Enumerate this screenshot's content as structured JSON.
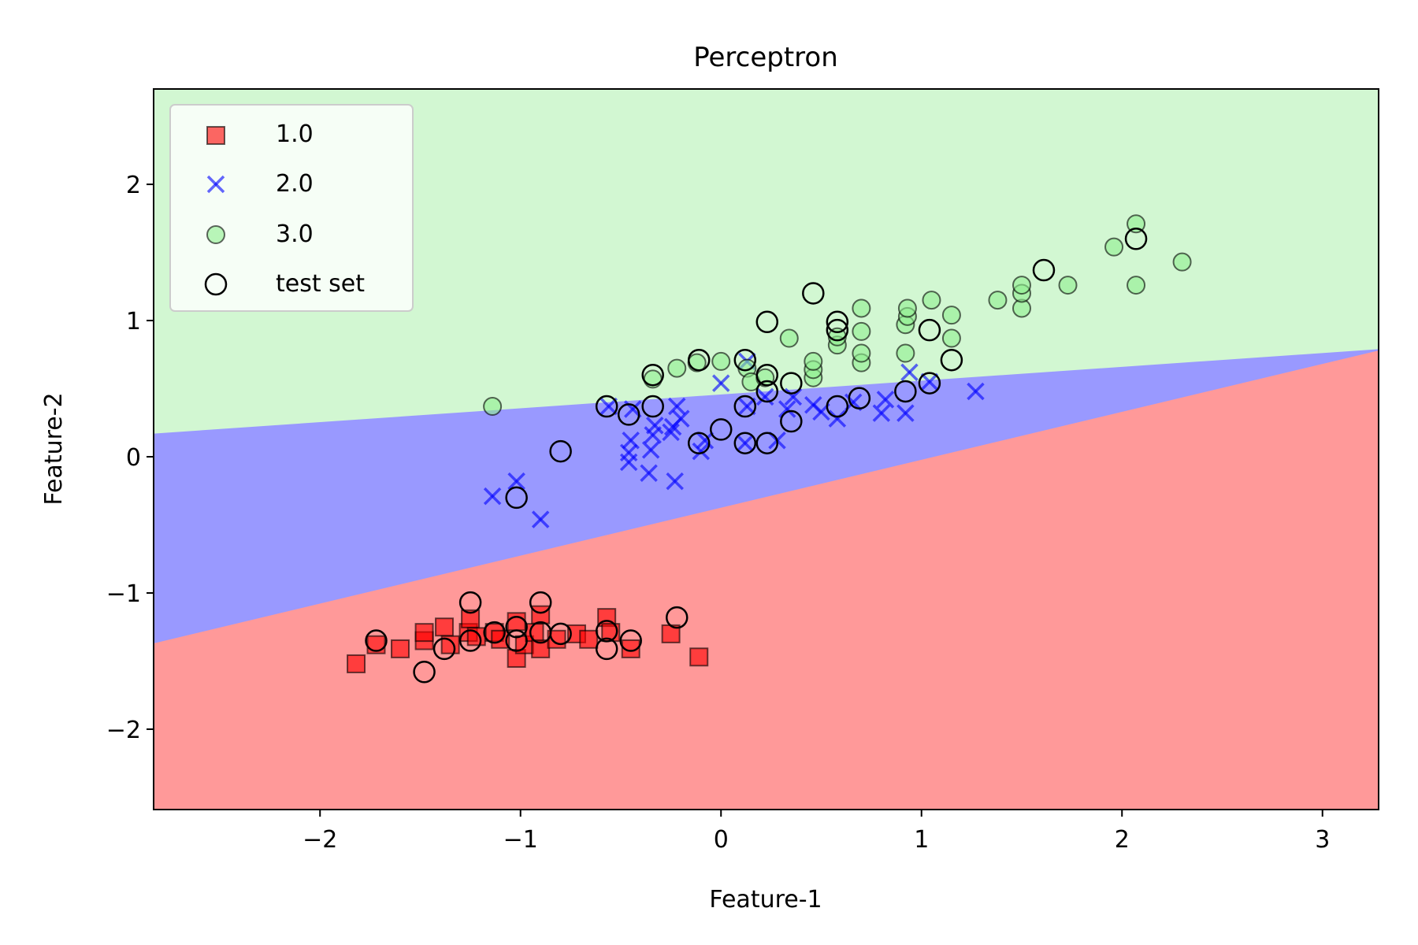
{
  "chart_data": {
    "type": "scatter",
    "title": "Perceptron",
    "xlabel": "Feature-1",
    "ylabel": "Feature-2",
    "xlim": [
      -2.83,
      3.28
    ],
    "ylim": [
      -2.59,
      2.7
    ],
    "xticks": [
      -2,
      -1,
      0,
      1,
      2,
      3
    ],
    "xtick_labels": [
      "−2",
      "−1",
      "0",
      "1",
      "2",
      "3"
    ],
    "yticks": [
      -2,
      -1,
      0,
      1,
      2
    ],
    "ytick_labels": [
      "−2",
      "−1",
      "0",
      "1",
      "2"
    ],
    "grid": false,
    "legend_position": "top-left",
    "decision_regions": {
      "colors": {
        "1.0": "#ff9999",
        "2.0": "#9999ff",
        "3.0": "#d2f7d2"
      },
      "boundary_red_blue": [
        [
          -2.83,
          -1.37
        ],
        [
          3.28,
          0.78
        ]
      ],
      "boundary_blue_green": [
        [
          -2.83,
          0.17
        ],
        [
          3.28,
          0.79
        ]
      ]
    },
    "series": [
      {
        "name": "1.0",
        "marker": "square",
        "color": "#ff0000",
        "points": [
          [
            -1.82,
            -1.52
          ],
          [
            -1.72,
            -1.38
          ],
          [
            -1.6,
            -1.41
          ],
          [
            -1.48,
            -1.35
          ],
          [
            -1.48,
            -1.29
          ],
          [
            -1.38,
            -1.25
          ],
          [
            -1.35,
            -1.38
          ],
          [
            -1.26,
            -1.29
          ],
          [
            -1.25,
            -1.19
          ],
          [
            -1.22,
            -1.32
          ],
          [
            -1.13,
            -1.29
          ],
          [
            -1.1,
            -1.34
          ],
          [
            -1.02,
            -1.21
          ],
          [
            -1.02,
            -1.48
          ],
          [
            -0.98,
            -1.38
          ],
          [
            -0.93,
            -1.29
          ],
          [
            -0.9,
            -1.16
          ],
          [
            -0.9,
            -1.41
          ],
          [
            -0.82,
            -1.34
          ],
          [
            -0.72,
            -1.3
          ],
          [
            -0.66,
            -1.34
          ],
          [
            -0.57,
            -1.18
          ],
          [
            -0.55,
            -1.29
          ],
          [
            -0.45,
            -1.41
          ],
          [
            -0.25,
            -1.3
          ],
          [
            -0.11,
            -1.47
          ]
        ]
      },
      {
        "name": "2.0",
        "marker": "x",
        "color": "#0000ff",
        "points": [
          [
            -1.14,
            -0.29
          ],
          [
            -1.02,
            -0.18
          ],
          [
            -0.9,
            -0.46
          ],
          [
            -0.56,
            0.37
          ],
          [
            -0.46,
            -0.04
          ],
          [
            -0.46,
            0.03
          ],
          [
            -0.45,
            0.12
          ],
          [
            -0.44,
            0.35
          ],
          [
            -0.36,
            -0.12
          ],
          [
            -0.35,
            0.05
          ],
          [
            -0.34,
            0.16
          ],
          [
            -0.33,
            0.23
          ],
          [
            -0.25,
            0.18
          ],
          [
            -0.24,
            0.22
          ],
          [
            -0.23,
            -0.18
          ],
          [
            -0.22,
            0.37
          ],
          [
            -0.2,
            0.28
          ],
          [
            -0.1,
            0.04
          ],
          [
            -0.08,
            0.12
          ],
          [
            0.0,
            0.54
          ],
          [
            0.12,
            0.1
          ],
          [
            0.13,
            0.37
          ],
          [
            0.13,
            0.7
          ],
          [
            0.22,
            0.44
          ],
          [
            0.28,
            0.12
          ],
          [
            0.33,
            0.35
          ],
          [
            0.36,
            0.44
          ],
          [
            0.46,
            0.38
          ],
          [
            0.5,
            0.33
          ],
          [
            0.58,
            0.28
          ],
          [
            0.66,
            0.4
          ],
          [
            0.8,
            0.32
          ],
          [
            0.82,
            0.42
          ],
          [
            0.92,
            0.32
          ],
          [
            0.94,
            0.62
          ],
          [
            1.04,
            0.55
          ],
          [
            1.27,
            0.48
          ]
        ]
      },
      {
        "name": "3.0",
        "marker": "circle",
        "color": "#90ee90",
        "points": [
          [
            -1.14,
            0.37
          ],
          [
            -0.34,
            0.57
          ],
          [
            -0.22,
            0.65
          ],
          [
            -0.12,
            0.69
          ],
          [
            0.0,
            0.7
          ],
          [
            0.13,
            0.65
          ],
          [
            0.15,
            0.55
          ],
          [
            0.22,
            0.58
          ],
          [
            0.34,
            0.87
          ],
          [
            0.46,
            0.58
          ],
          [
            0.46,
            0.64
          ],
          [
            0.46,
            0.7
          ],
          [
            0.58,
            0.82
          ],
          [
            0.58,
            0.88
          ],
          [
            0.7,
            0.69
          ],
          [
            0.7,
            0.76
          ],
          [
            0.7,
            0.92
          ],
          [
            0.7,
            1.09
          ],
          [
            0.92,
            0.76
          ],
          [
            0.92,
            0.97
          ],
          [
            0.93,
            1.03
          ],
          [
            0.93,
            1.09
          ],
          [
            1.05,
            1.15
          ],
          [
            1.15,
            0.87
          ],
          [
            1.15,
            1.04
          ],
          [
            1.38,
            1.15
          ],
          [
            1.5,
            1.09
          ],
          [
            1.5,
            1.2
          ],
          [
            1.5,
            1.26
          ],
          [
            1.73,
            1.26
          ],
          [
            1.96,
            1.54
          ],
          [
            2.07,
            1.26
          ],
          [
            2.07,
            1.71
          ],
          [
            2.3,
            1.43
          ]
        ]
      },
      {
        "name": "test set",
        "marker": "ring",
        "color": "#000000",
        "points": [
          [
            -1.72,
            -1.35
          ],
          [
            -1.48,
            -1.58
          ],
          [
            -1.38,
            -1.41
          ],
          [
            -1.25,
            -1.07
          ],
          [
            -1.25,
            -1.35
          ],
          [
            -1.13,
            -1.29
          ],
          [
            -1.02,
            -1.25
          ],
          [
            -1.02,
            -1.35
          ],
          [
            -0.9,
            -1.07
          ],
          [
            -0.9,
            -1.29
          ],
          [
            -0.8,
            -1.3
          ],
          [
            -0.57,
            -1.28
          ],
          [
            -0.57,
            -1.41
          ],
          [
            -0.45,
            -1.35
          ],
          [
            -0.22,
            -1.18
          ],
          [
            -1.02,
            -0.3
          ],
          [
            -0.8,
            0.04
          ],
          [
            -0.57,
            0.37
          ],
          [
            -0.46,
            0.31
          ],
          [
            -0.34,
            0.37
          ],
          [
            -0.34,
            0.6
          ],
          [
            -0.11,
            0.1
          ],
          [
            -0.11,
            0.71
          ],
          [
            0.0,
            0.2
          ],
          [
            0.12,
            0.1
          ],
          [
            0.12,
            0.37
          ],
          [
            0.12,
            0.71
          ],
          [
            0.23,
            0.1
          ],
          [
            0.23,
            0.48
          ],
          [
            0.23,
            0.6
          ],
          [
            0.23,
            0.99
          ],
          [
            0.35,
            0.26
          ],
          [
            0.35,
            0.54
          ],
          [
            0.46,
            1.2
          ],
          [
            0.58,
            0.37
          ],
          [
            0.58,
            0.93
          ],
          [
            0.58,
            0.99
          ],
          [
            0.69,
            0.43
          ],
          [
            0.92,
            0.48
          ],
          [
            1.04,
            0.54
          ],
          [
            1.04,
            0.93
          ],
          [
            1.15,
            0.71
          ],
          [
            1.61,
            1.37
          ],
          [
            2.07,
            1.6
          ]
        ]
      }
    ]
  }
}
